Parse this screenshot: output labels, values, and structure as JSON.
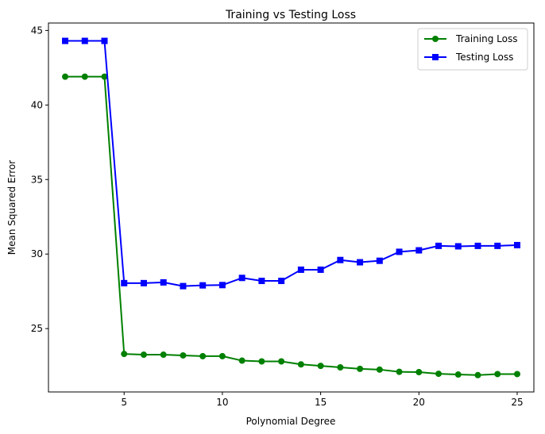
{
  "chart_data": {
    "type": "line",
    "title": "Training vs Testing Loss",
    "xlabel": "Polynomial Degree",
    "ylabel": "Mean Squared Error",
    "xlim": [
      1.15,
      25.85
    ],
    "ylim": [
      20.75,
      45.5
    ],
    "xticks": [
      5,
      10,
      15,
      20,
      25
    ],
    "yticks": [
      25,
      30,
      35,
      40,
      45
    ],
    "grid": false,
    "legend": "top-right",
    "x": [
      2,
      3,
      4,
      5,
      6,
      7,
      8,
      9,
      10,
      11,
      12,
      13,
      14,
      15,
      16,
      17,
      18,
      19,
      20,
      21,
      22,
      23,
      24,
      25
    ],
    "series": [
      {
        "name": "Training Loss",
        "color": "#008000",
        "marker": "circle",
        "values": [
          41.9,
          41.9,
          41.9,
          23.3,
          23.25,
          23.25,
          23.2,
          23.15,
          23.15,
          22.85,
          22.8,
          22.8,
          22.6,
          22.5,
          22.4,
          22.3,
          22.25,
          22.1,
          22.08,
          21.97,
          21.92,
          21.88,
          21.95,
          21.95
        ]
      },
      {
        "name": "Testing Loss",
        "color": "#0000ff",
        "marker": "square",
        "values": [
          44.3,
          44.3,
          44.3,
          28.05,
          28.05,
          28.1,
          27.85,
          27.9,
          27.92,
          28.4,
          28.2,
          28.2,
          28.95,
          28.95,
          29.6,
          29.45,
          29.55,
          30.15,
          30.25,
          30.55,
          30.52,
          30.55,
          30.55,
          30.6
        ]
      }
    ]
  }
}
